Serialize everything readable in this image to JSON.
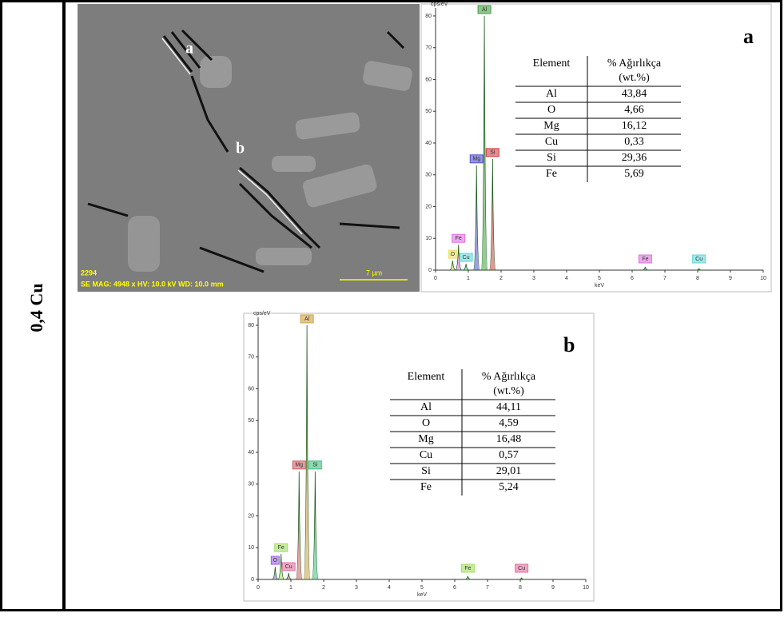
{
  "row_label": "0,4 Cu",
  "sem": {
    "points": [
      "a",
      "b"
    ],
    "scale_bar": "7 µm",
    "image_id": "2294",
    "info": "SE  MAG: 4948 x  HV: 10.0 kV  WD: 10.0 mm"
  },
  "spectra": [
    {
      "panel": "a",
      "y_unit": "cps/eV",
      "x_unit": "keV",
      "xlim": [
        0,
        10
      ],
      "ylim": [
        0,
        82.5
      ],
      "xticks": [
        0,
        1,
        2,
        3,
        4,
        5,
        6,
        7,
        8,
        9,
        10
      ],
      "yticks": [
        0,
        10,
        20,
        30,
        40,
        50,
        60,
        70,
        80
      ],
      "peaks": [
        {
          "label": "O",
          "x": 0.52,
          "y": 3,
          "color": "#e8e060"
        },
        {
          "label": "Fe",
          "x": 0.7,
          "y": 8,
          "color": "#e070e0"
        },
        {
          "label": "Cu",
          "x": 0.93,
          "y": 2,
          "color": "#60d8d8"
        },
        {
          "label": "Mg",
          "x": 1.25,
          "y": 33,
          "color": "#5050d0"
        },
        {
          "label": "Al",
          "x": 1.49,
          "y": 80,
          "color": "#40a040"
        },
        {
          "label": "Si",
          "x": 1.74,
          "y": 35,
          "color": "#d04040"
        },
        {
          "label": "Fe",
          "x": 6.4,
          "y": 1,
          "color": "#e070e0"
        },
        {
          "label": "Cu",
          "x": 8.04,
          "y": 0.5,
          "color": "#60d8d8"
        }
      ],
      "table": {
        "header": {
          "element": "Element",
          "weight": "% Ağırlıkça",
          "unit": "(wt.%)"
        },
        "rows": [
          [
            "Al",
            "43,84"
          ],
          [
            "O",
            "4,66"
          ],
          [
            "Mg",
            "16,12"
          ],
          [
            "Cu",
            "0,33"
          ],
          [
            "Si",
            "29,36"
          ],
          [
            "Fe",
            "5,69"
          ]
        ]
      }
    },
    {
      "panel": "b",
      "y_unit": "cps/eV",
      "x_unit": "keV",
      "xlim": [
        0,
        10
      ],
      "ylim": [
        0,
        82.5
      ],
      "xticks": [
        0,
        1,
        2,
        3,
        4,
        5,
        6,
        7,
        8,
        9,
        10
      ],
      "yticks": [
        0,
        10,
        20,
        30,
        40,
        50,
        60,
        70,
        80
      ],
      "peaks": [
        {
          "label": "O",
          "x": 0.52,
          "y": 4,
          "color": "#a060e0"
        },
        {
          "label": "Fe",
          "x": 0.7,
          "y": 8,
          "color": "#a0e060"
        },
        {
          "label": "Cu",
          "x": 0.93,
          "y": 2,
          "color": "#e070a0"
        },
        {
          "label": "Mg",
          "x": 1.25,
          "y": 34,
          "color": "#d06060"
        },
        {
          "label": "Al",
          "x": 1.49,
          "y": 80,
          "color": "#d0a040"
        },
        {
          "label": "Si",
          "x": 1.74,
          "y": 34,
          "color": "#40c080"
        },
        {
          "label": "Fe",
          "x": 6.4,
          "y": 1,
          "color": "#a0e060"
        },
        {
          "label": "Cu",
          "x": 8.04,
          "y": 0.5,
          "color": "#e070a0"
        }
      ],
      "table": {
        "header": {
          "element": "Element",
          "weight": "% Ağırlıkça",
          "unit": "(wt.%)"
        },
        "rows": [
          [
            "Al",
            "44,11"
          ],
          [
            "O",
            "4,59"
          ],
          [
            "Mg",
            "16,48"
          ],
          [
            "Cu",
            "0,57"
          ],
          [
            "Si",
            "29,01"
          ],
          [
            "Fe",
            "5,24"
          ]
        ]
      }
    }
  ]
}
